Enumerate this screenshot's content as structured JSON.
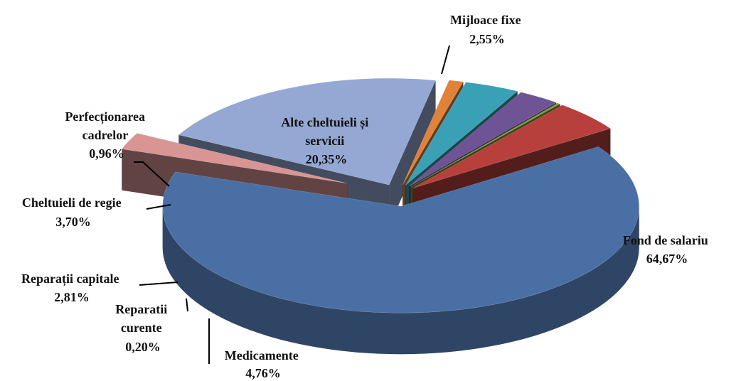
{
  "chart_data": {
    "type": "pie",
    "title": "",
    "variant": "3d-exploded",
    "slices": [
      {
        "label": "Fond de salariu",
        "value": 64.67,
        "value_label": "64,67%",
        "color": "#4a6fa5"
      },
      {
        "label": "Mijloace fixe",
        "value": 2.55,
        "value_label": "2,55%",
        "color": "#d99594"
      },
      {
        "label": "Alte cheltuieli și servicii",
        "value": 20.35,
        "value_label": "20,35%",
        "color": "#94a8d3"
      },
      {
        "label": "Perfecționarea cadrelor",
        "value": 0.96,
        "value_label": "0,96%",
        "color": "#e0823a"
      },
      {
        "label": "Cheltuieli de regie",
        "value": 3.7,
        "value_label": "3,70%",
        "color": "#3aa0b5"
      },
      {
        "label": "Reparații capitale",
        "value": 2.81,
        "value_label": "2,81%",
        "color": "#6e5494"
      },
      {
        "label": "Reparatii curente",
        "value": 0.2,
        "value_label": "0,20%",
        "color": "#7a9a3a"
      },
      {
        "label": "Medicamente",
        "value": 4.76,
        "value_label": "4,76%",
        "color": "#b8403c"
      }
    ]
  },
  "labels": {
    "fond": {
      "line1": "Fond de salariu",
      "value": "64,67%"
    },
    "mijloace": {
      "line1": "Mijloace fixe",
      "value": "2,55%"
    },
    "alte": {
      "line1": "Alte cheltuieli și",
      "line2": "servicii",
      "value": "20,35%"
    },
    "perf": {
      "line1": "Perfecționarea",
      "line2": "cadrelor",
      "value": "0,96%"
    },
    "regie": {
      "line1": "Cheltuieli de regie",
      "value": "3,70%"
    },
    "capitale": {
      "line1": "Reparații capitale",
      "value": "2,81%"
    },
    "curente": {
      "line1": "Reparatii",
      "line2": "curente",
      "value": "0,20%"
    },
    "medic": {
      "line1": "Medicamente",
      "value": "4,76%"
    }
  }
}
